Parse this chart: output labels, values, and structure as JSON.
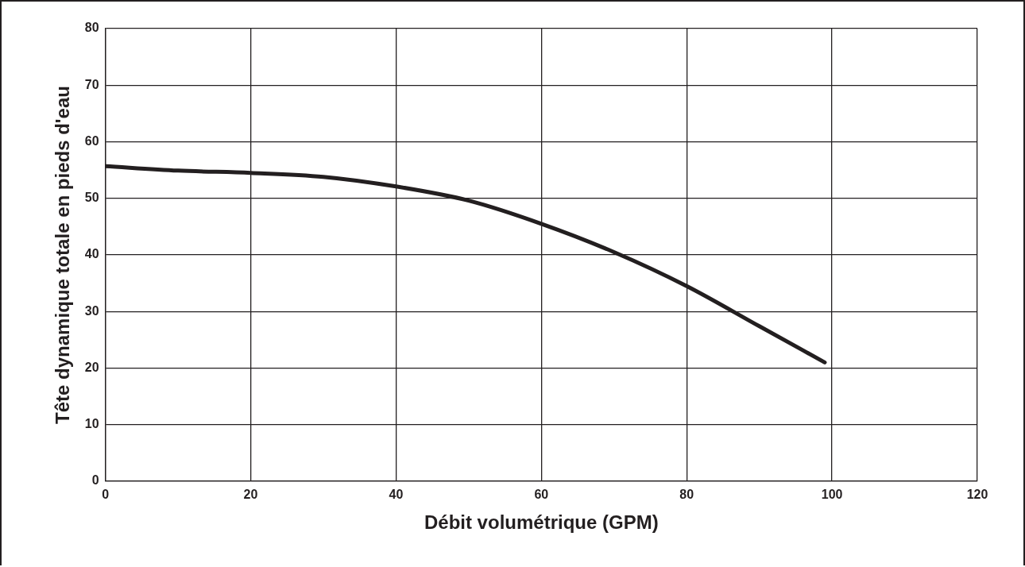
{
  "chart_data": {
    "type": "line",
    "xlabel": "Débit volumétrique (GPM)",
    "ylabel": "Tête dynamique totale en pieds d'eau",
    "x": [
      0,
      10,
      20,
      30,
      40,
      50,
      60,
      70,
      80,
      90,
      99
    ],
    "series": [
      {
        "color": "#231f20",
        "values": [
          55.7,
          54.9,
          54.5,
          53.8,
          52.1,
          49.6,
          45.5,
          40.5,
          34.5,
          27.4,
          21.0
        ]
      }
    ],
    "xlim": [
      0,
      120
    ],
    "xticks": [
      0,
      20,
      40,
      60,
      80,
      100,
      120
    ],
    "ylim": [
      0,
      80
    ],
    "yticks": [
      0,
      10,
      20,
      30,
      40,
      50,
      60,
      70,
      80
    ],
    "grid": true,
    "marker": "none",
    "line_style": "solid"
  }
}
